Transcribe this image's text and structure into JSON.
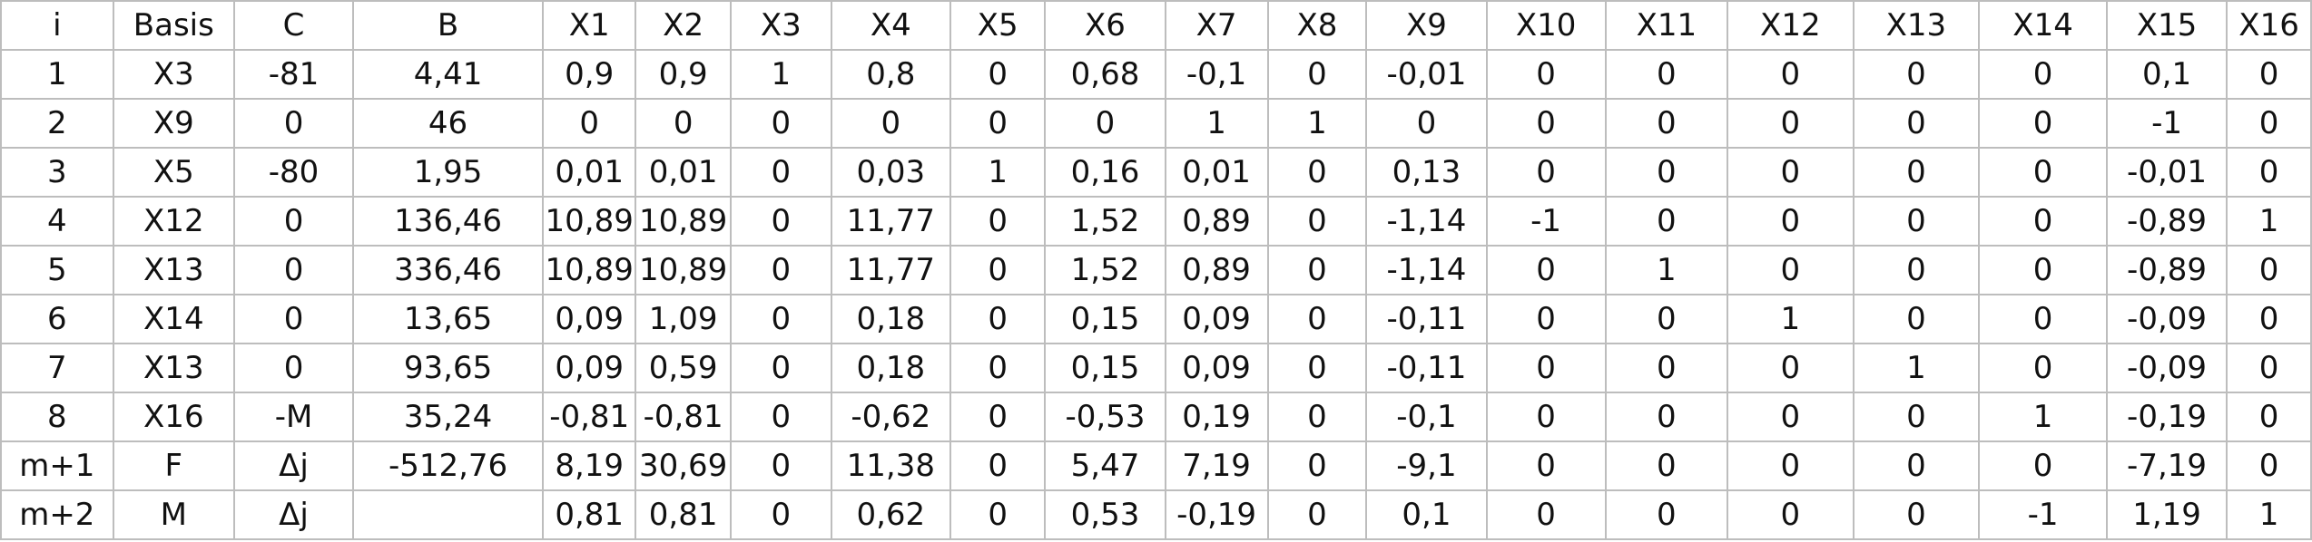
{
  "table": {
    "header": [
      "i",
      "Basis",
      "C",
      "B",
      "X1",
      "X2",
      "X3",
      "X4",
      "X5",
      "X6",
      "X7",
      "X8",
      "X9",
      "X10",
      "X11",
      "X12",
      "X13",
      "X14",
      "X15",
      "X16"
    ],
    "rows": [
      [
        "1",
        "X3",
        "-81",
        "4,41",
        "0,9",
        "0,9",
        "1",
        "0,8",
        "0",
        "0,68",
        "-0,1",
        "0",
        "-0,01",
        "0",
        "0",
        "0",
        "0",
        "0",
        "0,1",
        "0"
      ],
      [
        "2",
        "X9",
        "0",
        "46",
        "0",
        "0",
        "0",
        "0",
        "0",
        "0",
        "1",
        "1",
        "0",
        "0",
        "0",
        "0",
        "0",
        "0",
        "-1",
        "0"
      ],
      [
        "3",
        "X5",
        "-80",
        "1,95",
        "0,01",
        "0,01",
        "0",
        "0,03",
        "1",
        "0,16",
        "0,01",
        "0",
        "0,13",
        "0",
        "0",
        "0",
        "0",
        "0",
        "-0,01",
        "0"
      ],
      [
        "4",
        "X12",
        "0",
        "136,46",
        "10,89",
        "10,89",
        "0",
        "11,77",
        "0",
        "1,52",
        "0,89",
        "0",
        "-1,14",
        "-1",
        "0",
        "0",
        "0",
        "0",
        "-0,89",
        "1"
      ],
      [
        "5",
        "X13",
        "0",
        "336,46",
        "10,89",
        "10,89",
        "0",
        "11,77",
        "0",
        "1,52",
        "0,89",
        "0",
        "-1,14",
        "0",
        "1",
        "0",
        "0",
        "0",
        "-0,89",
        "0"
      ],
      [
        "6",
        "X14",
        "0",
        "13,65",
        "0,09",
        "1,09",
        "0",
        "0,18",
        "0",
        "0,15",
        "0,09",
        "0",
        "-0,11",
        "0",
        "0",
        "1",
        "0",
        "0",
        "-0,09",
        "0"
      ],
      [
        "7",
        "X13",
        "0",
        "93,65",
        "0,09",
        "0,59",
        "0",
        "0,18",
        "0",
        "0,15",
        "0,09",
        "0",
        "-0,11",
        "0",
        "0",
        "0",
        "1",
        "0",
        "-0,09",
        "0"
      ],
      [
        "8",
        "X16",
        "-M",
        "35,24",
        "-0,81",
        "-0,81",
        "0",
        "-0,62",
        "0",
        "-0,53",
        "0,19",
        "0",
        "-0,1",
        "0",
        "0",
        "0",
        "0",
        "1",
        "-0,19",
        "0"
      ],
      [
        "m+1",
        "F",
        "Δj",
        "-512,76",
        "8,19",
        "30,69",
        "0",
        "11,38",
        "0",
        "5,47",
        "7,19",
        "0",
        "-9,1",
        "0",
        "0",
        "0",
        "0",
        "0",
        "-7,19",
        "0"
      ],
      [
        "m+2",
        "M",
        "Δj",
        "",
        "0,81",
        "0,81",
        "0",
        "0,62",
        "0",
        "0,53",
        "-0,19",
        "0",
        "0,1",
        "0",
        "0",
        "0",
        "0",
        "-1",
        "1,19",
        "1"
      ]
    ]
  }
}
